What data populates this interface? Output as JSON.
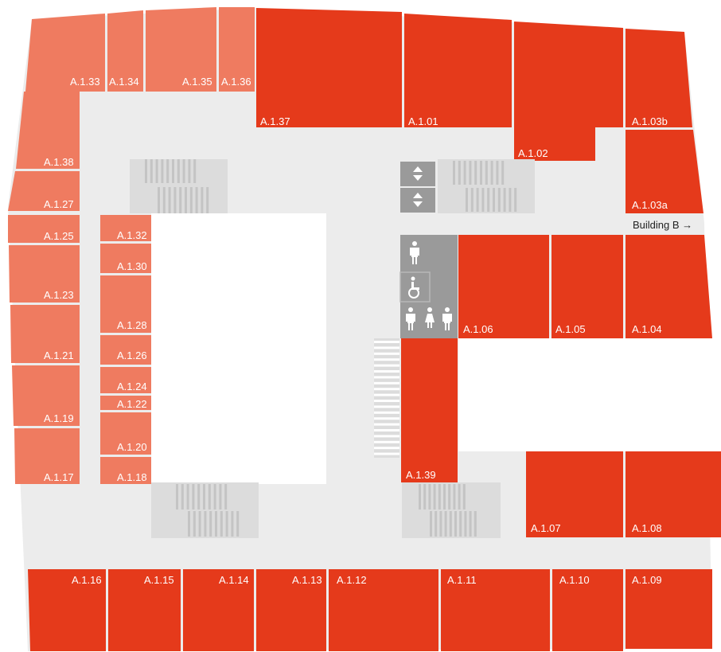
{
  "map": {
    "colors": {
      "corridor": "#ececec",
      "room_light": "#ef7b60",
      "room_dark": "#e53a1b",
      "facility": "#9a9a9a",
      "stairs": "#dcdcdc",
      "stair_lines": "#c4c4c4",
      "courtyard": "#ffffff"
    },
    "building_link": "Building B →",
    "facility_icons": [
      "toilet-men-icon",
      "wheelchair-accessible-icon",
      "toilet-unisex-icon",
      "elevator-icon"
    ],
    "rooms": [
      {
        "id": "A.1.01",
        "shade": "dark"
      },
      {
        "id": "A.1.02",
        "shade": "dark"
      },
      {
        "id": "A.1.03a",
        "shade": "dark"
      },
      {
        "id": "A.1.03b",
        "shade": "dark"
      },
      {
        "id": "A.1.04",
        "shade": "dark"
      },
      {
        "id": "A.1.05",
        "shade": "dark"
      },
      {
        "id": "A.1.06",
        "shade": "dark"
      },
      {
        "id": "A.1.07",
        "shade": "dark"
      },
      {
        "id": "A.1.08",
        "shade": "dark"
      },
      {
        "id": "A.1.09",
        "shade": "dark"
      },
      {
        "id": "A.1.10",
        "shade": "dark"
      },
      {
        "id": "A.1.11",
        "shade": "dark"
      },
      {
        "id": "A.1.12",
        "shade": "dark"
      },
      {
        "id": "A.1.13",
        "shade": "dark"
      },
      {
        "id": "A.1.14",
        "shade": "dark"
      },
      {
        "id": "A.1.15",
        "shade": "dark"
      },
      {
        "id": "A.1.16",
        "shade": "dark"
      },
      {
        "id": "A.1.17",
        "shade": "light"
      },
      {
        "id": "A.1.18",
        "shade": "light"
      },
      {
        "id": "A.1.19",
        "shade": "light"
      },
      {
        "id": "A.1.20",
        "shade": "light"
      },
      {
        "id": "A.1.21",
        "shade": "light"
      },
      {
        "id": "A.1.22",
        "shade": "light"
      },
      {
        "id": "A.1.23",
        "shade": "light"
      },
      {
        "id": "A.1.24",
        "shade": "light"
      },
      {
        "id": "A.1.25",
        "shade": "light"
      },
      {
        "id": "A.1.26",
        "shade": "light"
      },
      {
        "id": "A.1.27",
        "shade": "light"
      },
      {
        "id": "A.1.28",
        "shade": "light"
      },
      {
        "id": "A.1.30",
        "shade": "light"
      },
      {
        "id": "A.1.32",
        "shade": "light"
      },
      {
        "id": "A.1.33",
        "shade": "light"
      },
      {
        "id": "A.1.34",
        "shade": "light"
      },
      {
        "id": "A.1.35",
        "shade": "light"
      },
      {
        "id": "A.1.36",
        "shade": "light"
      },
      {
        "id": "A.1.37",
        "shade": "dark"
      },
      {
        "id": "A.1.38",
        "shade": "light"
      },
      {
        "id": "A.1.39",
        "shade": "dark"
      }
    ]
  }
}
